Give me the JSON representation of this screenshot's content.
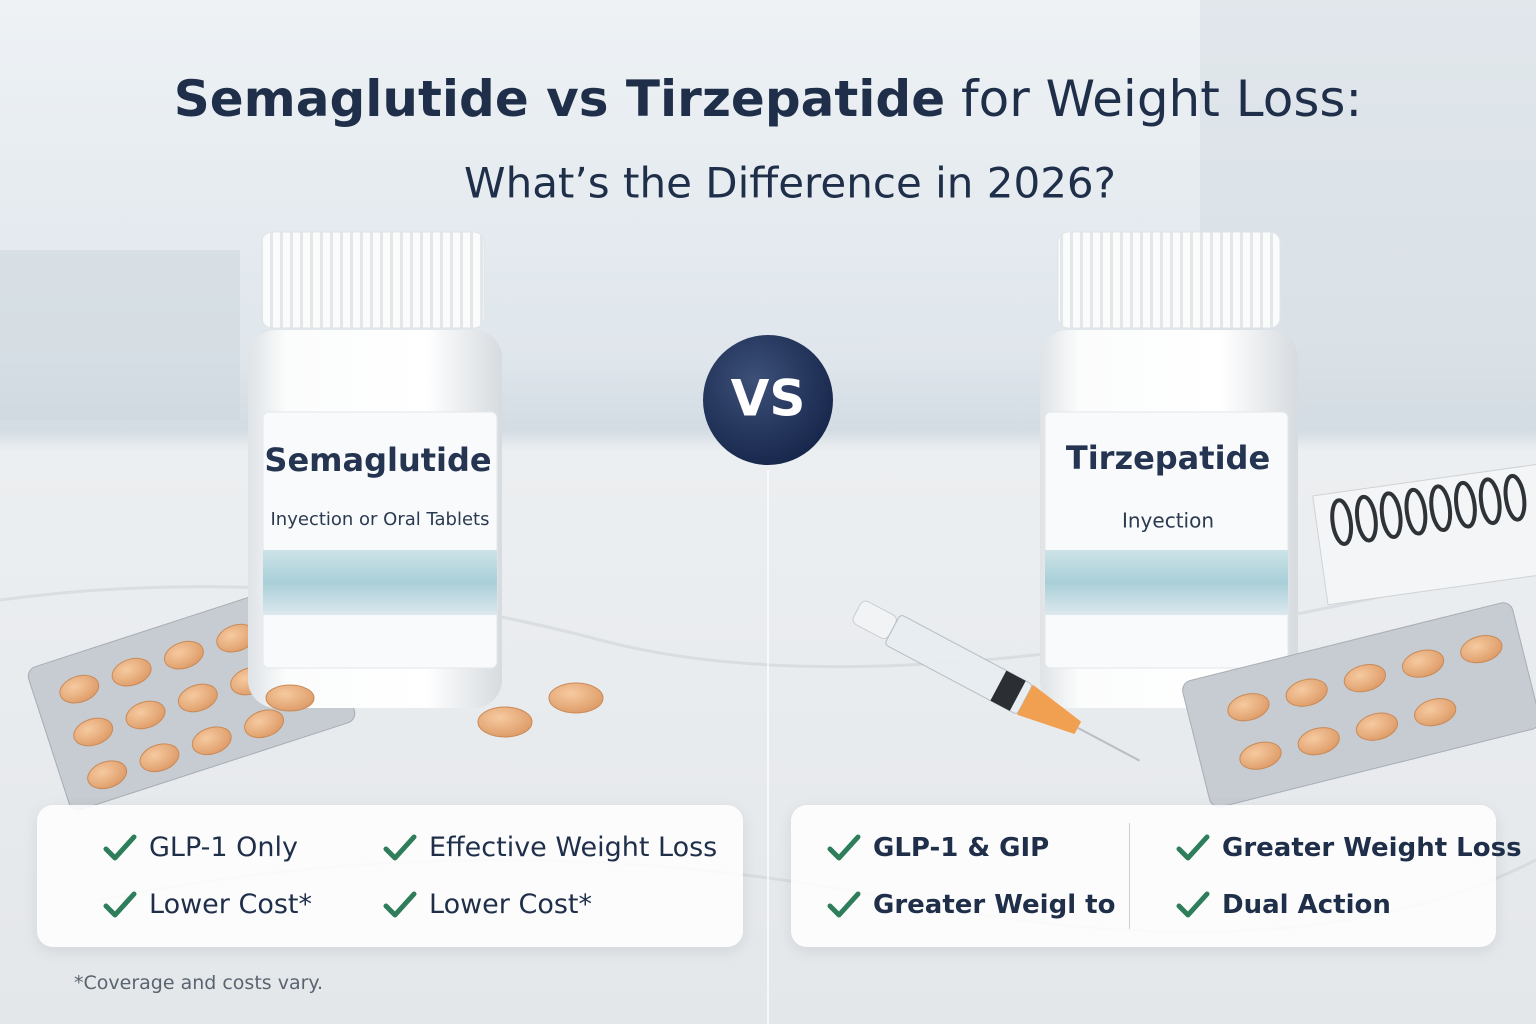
{
  "header": {
    "title_emphasis": "Semaglutide vs Tirzepatide",
    "title_rest": "for Weight Loss:",
    "subtitle": "What’s the Difference in 2026?"
  },
  "vs": "VS",
  "left": {
    "name": "Semaglutide",
    "form": "Inyection or Oral Tablets",
    "features": [
      "GLP-1 Only",
      "Effective Weight Loss",
      "Lower Cost*",
      "Lower Cost*"
    ]
  },
  "right": {
    "name": "Tirzepatide",
    "form": "Inyection",
    "features": [
      "GLP-1 & GIP",
      "Greater Weight Loss",
      "Greater Weigl to",
      "Dual Action"
    ]
  },
  "footnote": "*Coverage and costs vary."
}
